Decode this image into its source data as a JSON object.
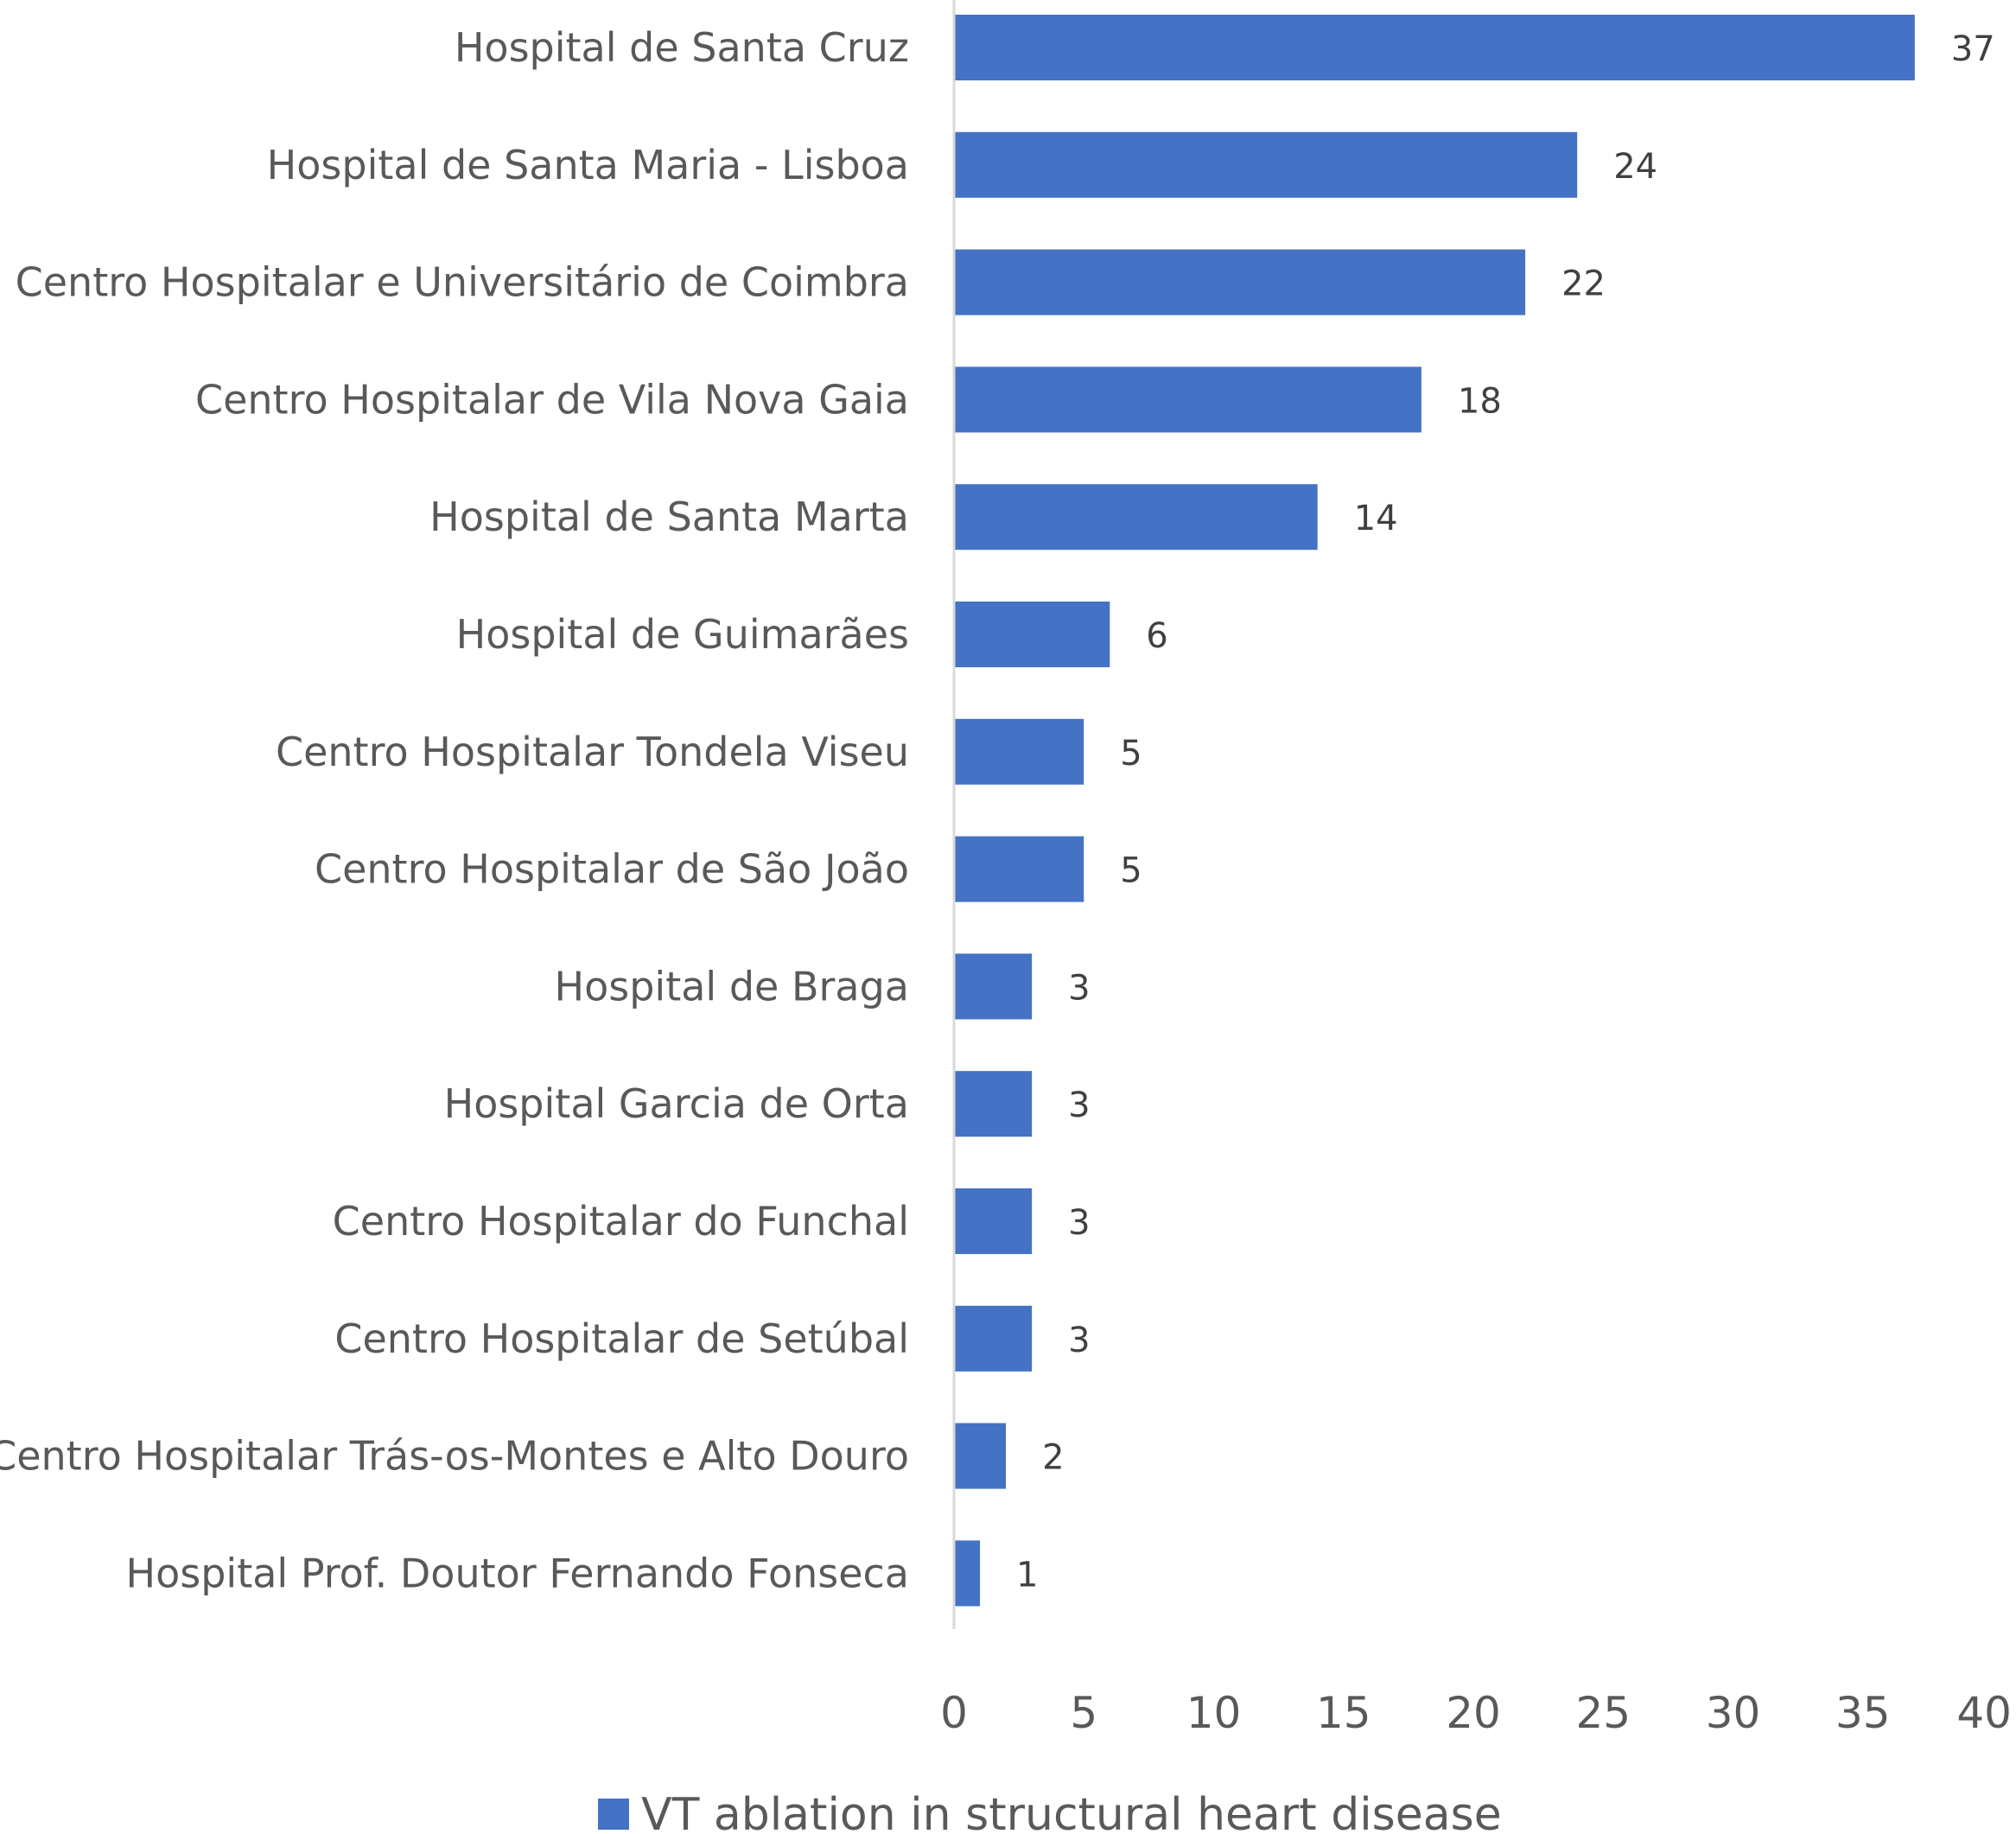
{
  "chart_data": {
    "type": "bar",
    "orientation": "horizontal",
    "categories": [
      "Hospital de Santa Cruz",
      "Hospital de Santa Maria - Lisboa",
      "Centro Hospitalar e Universitário de Coimbra",
      "Centro Hospitalar de Vila Nova Gaia",
      "Hospital de Santa Marta",
      "Hospital de Guimarães",
      "Centro Hospitalar Tondela Viseu",
      "Centro Hospitalar de São João",
      "Hospital de Braga",
      "Hospital Garcia de Orta",
      "Centro Hospitalar do Funchal",
      "Centro Hospitalar de Setúbal",
      "Centro Hospitalar Trás-os-Montes e Alto Douro",
      "Hospital Prof. Doutor Fernando Fonseca"
    ],
    "series": [
      {
        "name": "VT ablation in structural heart disease",
        "color": "#4472C4",
        "values": [
          37,
          24,
          22,
          18,
          14,
          6,
          5,
          5,
          3,
          3,
          3,
          3,
          2,
          1
        ]
      }
    ],
    "xlim": [
      0,
      40
    ],
    "xticks": [
      "0",
      "5",
      "10",
      "15",
      "20",
      "25",
      "30",
      "35",
      "40"
    ],
    "data_labels": true,
    "grid": false,
    "legend": "bottom-center",
    "title": "",
    "xlabel": "",
    "ylabel": ""
  },
  "colors": {
    "axis_line": "#D9D9D9",
    "bar": "#4472C4"
  }
}
